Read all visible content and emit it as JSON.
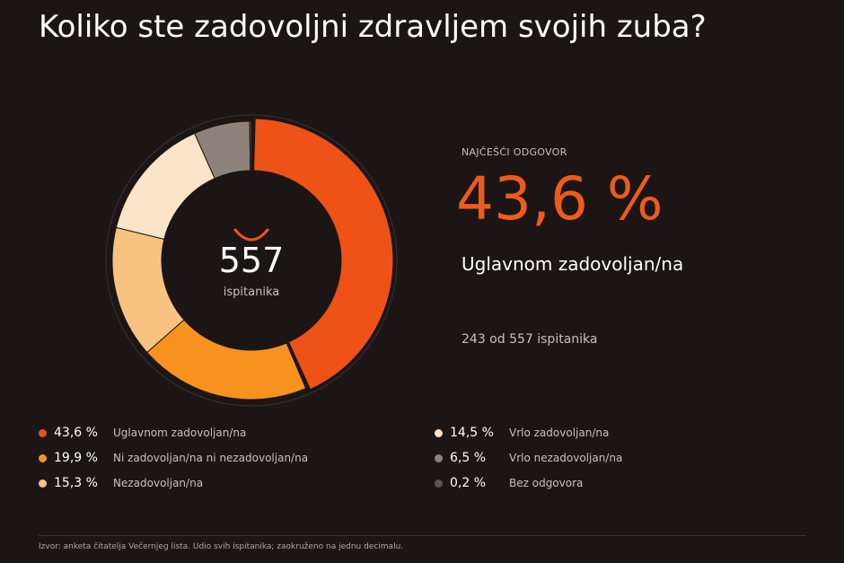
{
  "title": "Koliko ste zadovoljni zdravljem svojih zuba?",
  "center": {
    "count": "557",
    "label": "ispitanika"
  },
  "highlight": {
    "caption": "NAJČEŠĆI ODGOVOR",
    "value": "43,6 %",
    "label": "Uglavnom zadovoljan/na",
    "sub": "243 od 557 ispitanika"
  },
  "legend": [
    {
      "pct": "43,6 %",
      "name": "Uglavnom zadovoljan/na",
      "color": "#ee5217"
    },
    {
      "pct": "19,9 %",
      "name": "Ni zadovoljan/na ni nezadovoljan/na",
      "color": "#f7921e"
    },
    {
      "pct": "15,3 %",
      "name": "Nezadovoljan/na",
      "color": "#f8c281"
    },
    {
      "pct": "14,5 %",
      "name": "Vrlo zadovoljan/na",
      "color": "#fbe4c8"
    },
    {
      "pct": "6,5 %",
      "name": "Vrlo nezadovoljan/na",
      "color": "#8e827b"
    },
    {
      "pct": "0,2 %",
      "name": "Bez odgovora",
      "color": "#5c5452"
    }
  ],
  "source": "Izvor: anketa čitatelja Večernjeg lista. Udio svih ispitanika; zaokruženo na jednu decimalu.",
  "chart_data": {
    "type": "pie",
    "title": "Koliko ste zadovoljni zdravljem svojih zuba?",
    "total": 557,
    "categories": [
      "Uglavnom zadovoljan/na",
      "Ni zadovoljan/na ni nezadovoljan/na",
      "Nezadovoljan/na",
      "Vrlo zadovoljan/na",
      "Vrlo nezadovoljan/na",
      "Bez odgovora"
    ],
    "values": [
      43.6,
      19.9,
      15.3,
      14.5,
      6.5,
      0.2
    ],
    "colors": [
      "#ee5217",
      "#f7921e",
      "#f8c281",
      "#fbe4c8",
      "#8e827b",
      "#5c5452"
    ],
    "highlight_index": 0,
    "legend": "bottom"
  }
}
